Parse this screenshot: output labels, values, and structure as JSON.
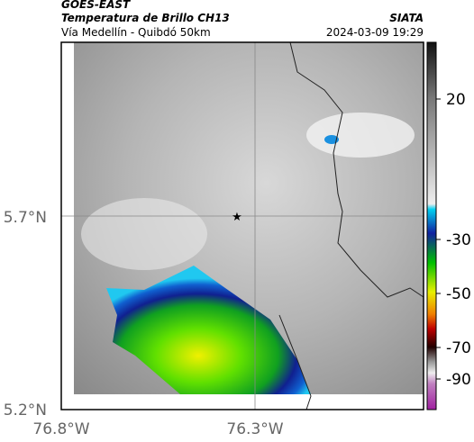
{
  "header": {
    "satellite": "GOES-EAST",
    "product": "Temperatura de Brillo CH13",
    "source": "SIATA",
    "route": "Vía Medellín - Quibdó 50km",
    "datetime": "2024-03-09 19:29"
  },
  "map": {
    "lat_labels": [
      "5.7°N",
      "5.2°N"
    ],
    "lon_labels": [
      "76.8°W",
      "76.3°W"
    ]
  },
  "colorbar": {
    "ticks": [
      20,
      -30,
      -50,
      -70,
      -90
    ]
  }
}
